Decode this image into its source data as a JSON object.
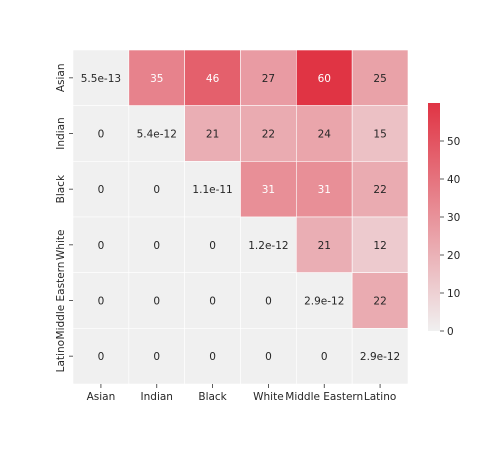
{
  "chart_data": {
    "type": "heatmap",
    "title": "",
    "xlabel": "",
    "ylabel": "",
    "x_categories": [
      "Asian",
      "Indian",
      "Black",
      "White",
      "Middle Eastern",
      "Latino"
    ],
    "y_categories": [
      "Asian",
      "Indian",
      "Black",
      "White",
      "Middle Eastern",
      "Latino"
    ],
    "values": [
      [
        5.5e-13,
        35,
        46,
        27,
        60,
        25
      ],
      [
        0,
        5.4e-12,
        21,
        22,
        24,
        15
      ],
      [
        0,
        0,
        1.1e-11,
        31,
        31,
        22
      ],
      [
        0,
        0,
        0,
        1.2e-12,
        21,
        12
      ],
      [
        0,
        0,
        0,
        0,
        2.9e-12,
        22
      ],
      [
        0,
        0,
        0,
        0,
        0,
        2.9e-12
      ]
    ],
    "cell_labels": [
      [
        "5.5e-13",
        "35",
        "46",
        "27",
        "60",
        "25"
      ],
      [
        "0",
        "5.4e-12",
        "21",
        "22",
        "24",
        "15"
      ],
      [
        "0",
        "0",
        "1.1e-11",
        "31",
        "31",
        "22"
      ],
      [
        "0",
        "0",
        "0",
        "1.2e-12",
        "21",
        "12"
      ],
      [
        "0",
        "0",
        "0",
        "0",
        "2.9e-12",
        "22"
      ],
      [
        "0",
        "0",
        "0",
        "0",
        "0",
        "2.9e-12"
      ]
    ],
    "colorbar": {
      "min": 0,
      "max": 60,
      "ticks": [
        0,
        10,
        20,
        30,
        40,
        50
      ],
      "tick_labels": [
        "0",
        "10",
        "20",
        "30",
        "40",
        "50"
      ],
      "low_color": "#f0f0f0",
      "high_color": "#e03444"
    },
    "grid": false,
    "legend": "colorbar-right"
  }
}
